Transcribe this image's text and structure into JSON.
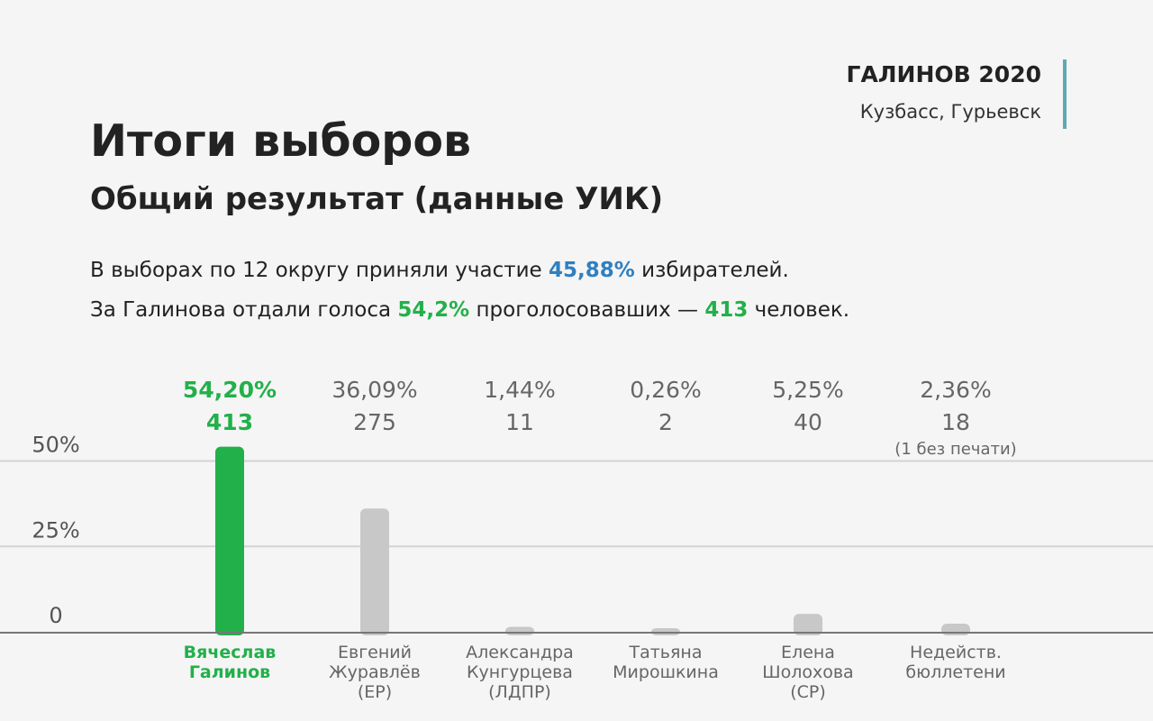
{
  "header": {
    "brand_title": "ГАЛИНОВ 2020",
    "brand_subtitle": "Кузбасс, Гурьевск",
    "brand_line_color": "#5fa9b3"
  },
  "title": "Итоги выборов",
  "subtitle": "Общий результат (данные УИК)",
  "summary": {
    "line1_pre": "В выборах по 12 округу приняли участие ",
    "line1_value": "45,88%",
    "line1_post": " избирателей.",
    "line2_pre": "За Галинова отдали голоса ",
    "line2_value1": "54,2%",
    "line2_mid": " проголосовавших — ",
    "line2_value2": "413",
    "line2_post": " человек."
  },
  "colors": {
    "highlight_green": "#22b04a",
    "highlight_blue": "#2f7fc1",
    "bar_gray": "#c8c8c8",
    "label_gray": "#666666"
  },
  "chart_data": {
    "type": "bar",
    "ylim": [
      0,
      100
    ],
    "yticks": [
      0,
      25,
      50
    ],
    "ytick_labels": [
      "0",
      "25%",
      "50%"
    ],
    "grid": true,
    "categories": [
      [
        "Вячеслав",
        "Галинов"
      ],
      [
        "Евгений",
        "Журавлёв",
        "(ЕР)"
      ],
      [
        "Александра",
        "Кунгурцева",
        "(ЛДПР)"
      ],
      [
        "Татьяна",
        "Мирошкина"
      ],
      [
        "Елена",
        "Шолохова",
        "(СР)"
      ],
      [
        "Недейств.",
        "бюллетени"
      ]
    ],
    "values": [
      54.2,
      36.09,
      1.44,
      0.26,
      5.25,
      2.36
    ],
    "percent_labels": [
      "54,20%",
      "36,09%",
      "1,44%",
      "0,26%",
      "5,25%",
      "2,36%"
    ],
    "votes": [
      "413",
      "275",
      "11",
      "2",
      "40",
      "18"
    ],
    "notes": [
      "",
      "",
      "",
      "",
      "",
      "(1 без печати)"
    ],
    "highlight_index": 0
  }
}
